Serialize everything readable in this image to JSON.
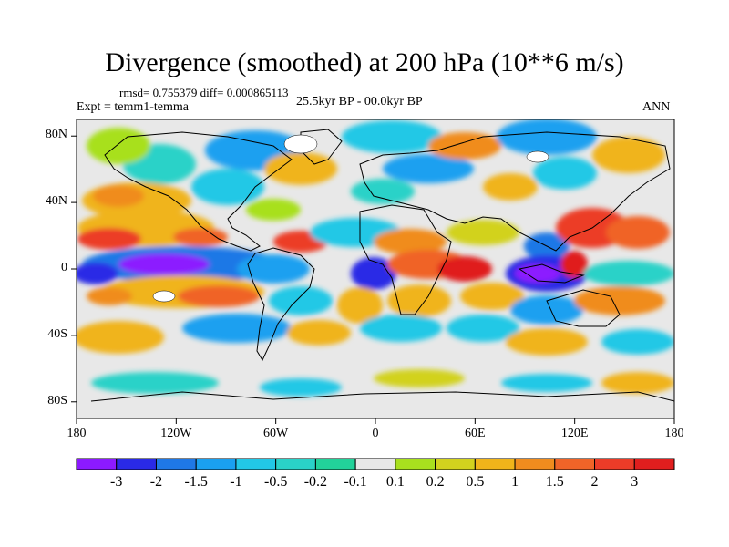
{
  "title": "Divergence (smoothed) at 200 hPa (10**6 m/s)",
  "stats": "rmsd= 0.755379 diff= 0.000865113",
  "experiment": "Expt = temm1-temma",
  "period": "25.5kyr BP - 00.0kyr BP",
  "season": "ANN",
  "axes": {
    "lat_ticks": [
      {
        "label": "80N",
        "lat": 80
      },
      {
        "label": "40N",
        "lat": 40
      },
      {
        "label": "0",
        "lat": 0
      },
      {
        "label": "40S",
        "lat": -40
      },
      {
        "label": "80S",
        "lat": -80
      }
    ],
    "lon_ticks": [
      {
        "label": "180",
        "lon": -180
      },
      {
        "label": "120W",
        "lon": -120
      },
      {
        "label": "60W",
        "lon": -60
      },
      {
        "label": "0",
        "lon": 0
      },
      {
        "label": "60E",
        "lon": 60
      },
      {
        "label": "120E",
        "lon": 120
      },
      {
        "label": "180",
        "lon": 180
      }
    ],
    "lon_range": [
      -180,
      180
    ],
    "lat_range": [
      -90,
      90
    ]
  },
  "colorbar": {
    "colors": [
      "#8c1aff",
      "#2a2ae6",
      "#1f78e6",
      "#1aa0f0",
      "#22c8e6",
      "#2ad2c8",
      "#22d29a",
      "#e8e8e8",
      "#a8e01e",
      "#d2d21e",
      "#f0b41a",
      "#f08c1e",
      "#f06428",
      "#ec3c28",
      "#e01e1e"
    ],
    "labels": [
      "-3",
      "-2",
      "-1.5",
      "-1",
      "-0.5",
      "-0.2",
      "-0.1",
      "0.1",
      "0.2",
      "0.5",
      "1",
      "1.5",
      "2",
      "3"
    ]
  }
}
